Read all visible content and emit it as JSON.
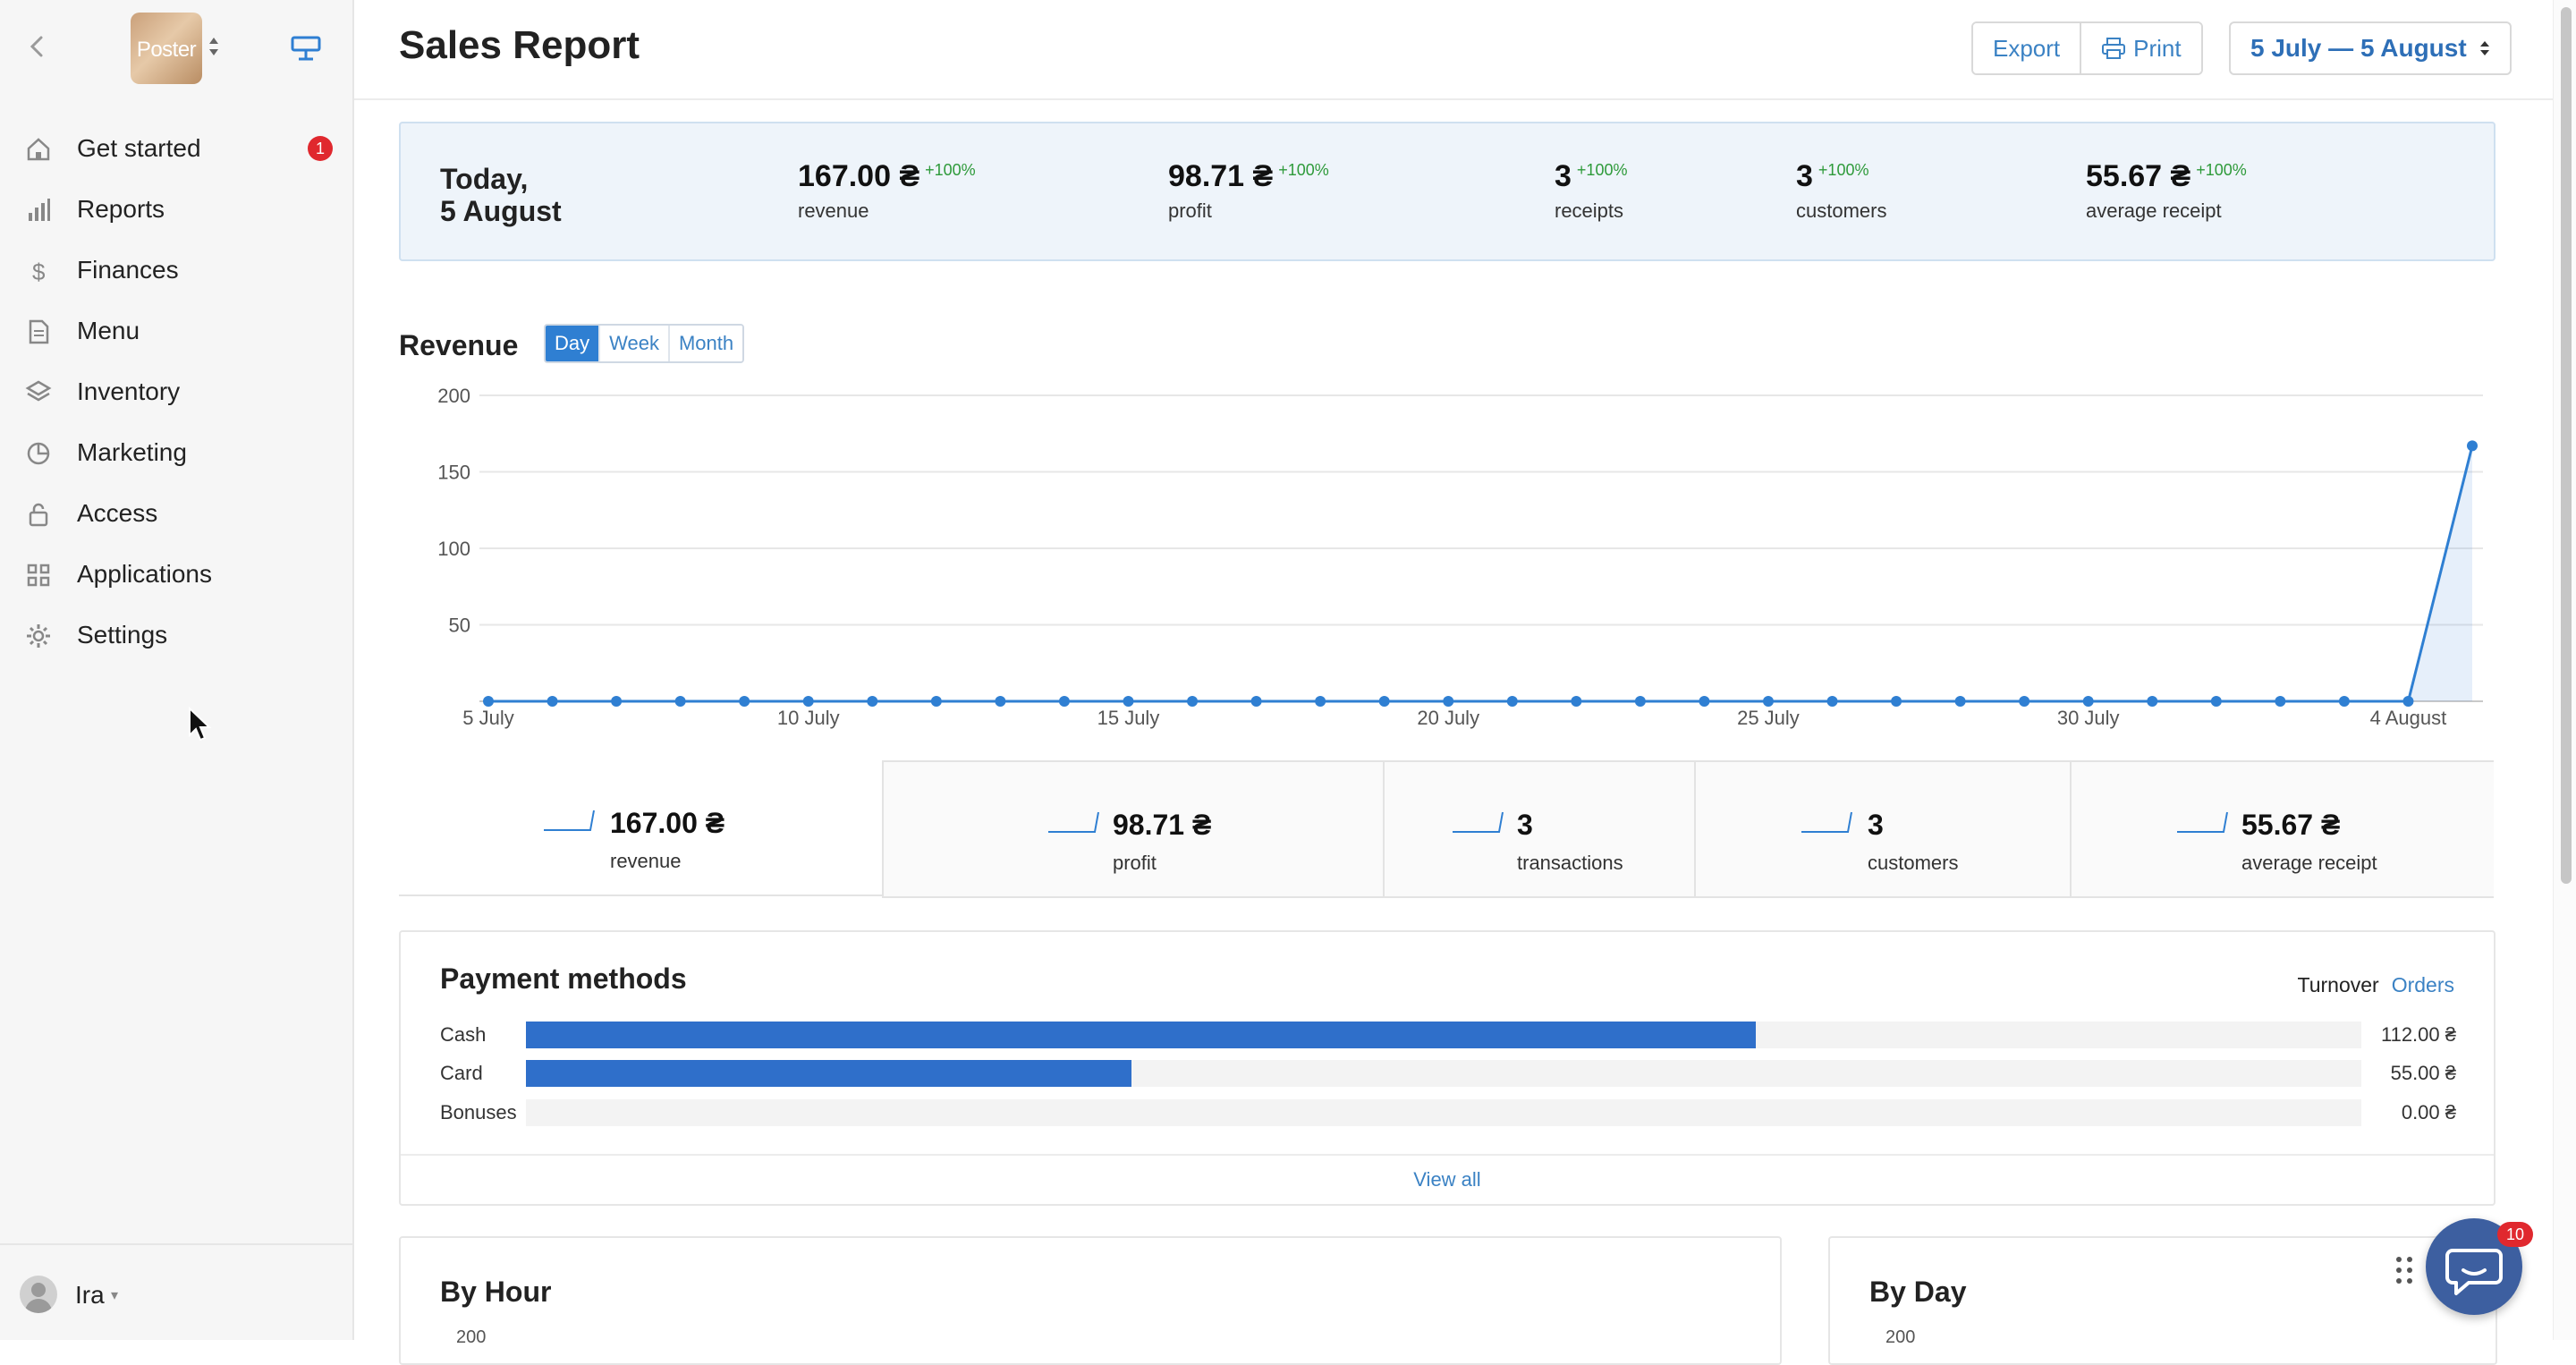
{
  "app": {
    "logo_text": "Poster"
  },
  "sidebar": {
    "items": [
      {
        "label": "Get started",
        "icon": "home-icon",
        "badge": "1"
      },
      {
        "label": "Reports",
        "icon": "bar-chart-icon"
      },
      {
        "label": "Finances",
        "icon": "dollar-icon"
      },
      {
        "label": "Menu",
        "icon": "document-icon"
      },
      {
        "label": "Inventory",
        "icon": "layers-icon"
      },
      {
        "label": "Marketing",
        "icon": "pie-chart-icon"
      },
      {
        "label": "Access",
        "icon": "lock-icon"
      },
      {
        "label": "Applications",
        "icon": "grid-icon"
      },
      {
        "label": "Settings",
        "icon": "gear-icon"
      }
    ],
    "user": {
      "name": "Ira"
    }
  },
  "header": {
    "title": "Sales Report",
    "export_label": "Export",
    "print_label": "Print",
    "date_range": "5 July — 5 August"
  },
  "summary": {
    "date": "Today,\n5 August",
    "items": [
      {
        "value": "167.00 ₴",
        "change": "+100%",
        "label": "revenue"
      },
      {
        "value": "98.71 ₴",
        "change": "+100%",
        "label": "profit"
      },
      {
        "value": "3",
        "change": "+100%",
        "label": "receipts"
      },
      {
        "value": "3",
        "change": "+100%",
        "label": "customers"
      },
      {
        "value": "55.67 ₴",
        "change": "+100%",
        "label": "average receipt"
      }
    ]
  },
  "revenue": {
    "title": "Revenue",
    "periods": [
      "Day",
      "Week",
      "Month"
    ],
    "active_period": "Day"
  },
  "chart_data": {
    "type": "area",
    "title": "Revenue",
    "x_labels": [
      "5 July",
      "10 July",
      "15 July",
      "20 July",
      "25 July",
      "30 July",
      "4 August"
    ],
    "x_label_index": [
      0,
      5,
      10,
      15,
      20,
      25,
      30
    ],
    "x": [
      "5 July",
      "6 July",
      "7 July",
      "8 July",
      "9 July",
      "10 July",
      "11 July",
      "12 July",
      "13 July",
      "14 July",
      "15 July",
      "16 July",
      "17 July",
      "18 July",
      "19 July",
      "20 July",
      "21 July",
      "22 July",
      "23 July",
      "24 July",
      "25 July",
      "26 July",
      "27 July",
      "28 July",
      "29 July",
      "30 July",
      "31 July",
      "1 August",
      "2 August",
      "3 August",
      "4 August",
      "5 August"
    ],
    "series": [
      {
        "values": [
          0,
          0,
          0,
          0,
          0,
          0,
          0,
          0,
          0,
          0,
          0,
          0,
          0,
          0,
          0,
          0,
          0,
          0,
          0,
          0,
          0,
          0,
          0,
          0,
          0,
          0,
          0,
          0,
          0,
          0,
          0,
          167
        ]
      }
    ],
    "yticks": [
      50,
      100,
      150,
      200
    ],
    "ylim": [
      0,
      200
    ],
    "grid": true,
    "color": "#2f7fd2"
  },
  "metrics": [
    {
      "value": "167.00 ₴",
      "label": "revenue"
    },
    {
      "value": "98.71 ₴",
      "label": "profit"
    },
    {
      "value": "3",
      "label": "transactions"
    },
    {
      "value": "3",
      "label": "customers"
    },
    {
      "value": "55.67 ₴",
      "label": "average receipt"
    }
  ],
  "payment_methods": {
    "title": "Payment methods",
    "toggle": {
      "turnover": "Turnover",
      "orders": "Orders"
    },
    "rows": [
      {
        "name": "Cash",
        "amount": "112.00 ₴",
        "share": 0.67
      },
      {
        "name": "Card",
        "amount": "55.00 ₴",
        "share": 0.33
      },
      {
        "name": "Bonuses",
        "amount": "0.00 ₴",
        "share": 0
      }
    ],
    "view_all": "View all"
  },
  "by_hour": {
    "title": "By Hour",
    "first_tick": "200"
  },
  "by_day": {
    "title": "By Day",
    "first_tick": "200"
  },
  "chat": {
    "badge": "10"
  },
  "colors": {
    "accent": "#2f7fd2",
    "positive": "#2e9a3a",
    "badge": "#e0282e",
    "summary_bg": "#eef4fa"
  }
}
